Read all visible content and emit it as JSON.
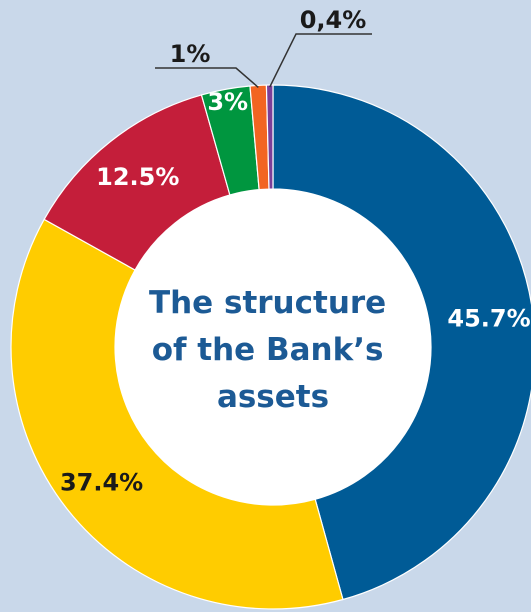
{
  "chart_data": {
    "type": "pie",
    "variant": "donut",
    "title_lines": [
      "The structure",
      "of the Bank’s",
      "assets"
    ],
    "slices": [
      {
        "label": "45.7%",
        "value": 45.7,
        "color": "#005b96",
        "label_color": "#ffffff",
        "label_position": "inside"
      },
      {
        "label": "37.4%",
        "value": 37.4,
        "color": "#ffcc00",
        "label_color": "#1a1a1a",
        "label_position": "inside"
      },
      {
        "label": "12.5%",
        "value": 12.5,
        "color": "#c41e3a",
        "label_color": "#ffffff",
        "label_position": "inside"
      },
      {
        "label": "3%",
        "value": 3,
        "color": "#00963f",
        "label_color": "#ffffff",
        "label_position": "inside"
      },
      {
        "label": "1%",
        "value": 1,
        "color": "#f26522",
        "label_color": "#1a1a1a",
        "label_position": "outside"
      },
      {
        "label": "0,4%",
        "value": 0.4,
        "color": "#7b3f98",
        "label_color": "#1a1a1a",
        "label_position": "outside"
      }
    ],
    "legend": "none"
  }
}
